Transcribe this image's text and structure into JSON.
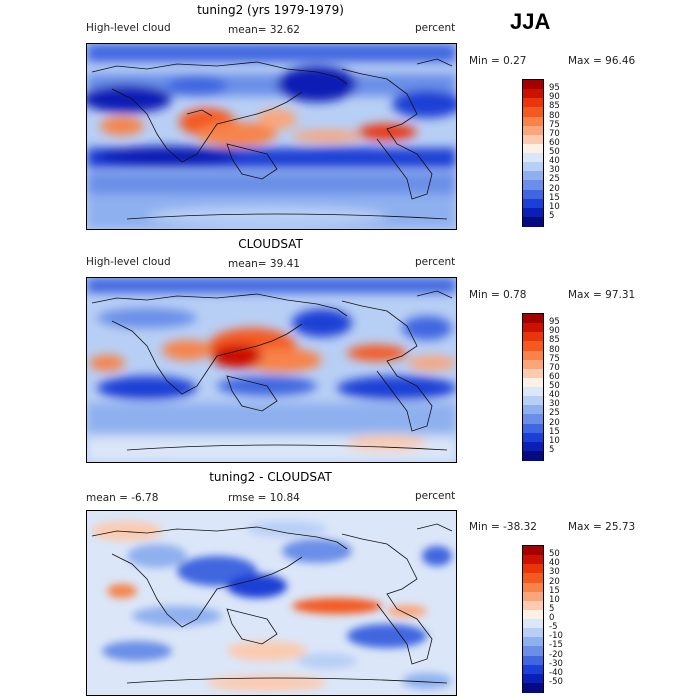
{
  "season": "JJA",
  "panels": [
    {
      "title": "tuning2 (yrs 1979-1979)",
      "variable": "High-level cloud",
      "stat_text": "mean=  32.62",
      "units": "percent",
      "min_text": "Min =    0.27",
      "max_text": "Max =   96.46",
      "colorbar_labels": [
        "95",
        "90",
        "85",
        "80",
        "75",
        "70",
        "60",
        "50",
        "40",
        "30",
        "25",
        "20",
        "15",
        "10",
        "5"
      ],
      "colorbar_colors": [
        "#a50000",
        "#cc1100",
        "#e8350a",
        "#f45a20",
        "#f7834a",
        "#f9a67a",
        "#fbcbb0",
        "#fdf0e4",
        "#dbe6f8",
        "#b8cff5",
        "#8fb0ef",
        "#6b8fe8",
        "#4066e0",
        "#1c3fd6",
        "#0a1fb5",
        "#050a80"
      ]
    },
    {
      "title": "CLOUDSAT",
      "variable": "High-level cloud",
      "stat_text": "mean=  39.41",
      "units": "percent",
      "min_text": "Min =    0.78",
      "max_text": "Max =   97.31",
      "colorbar_labels": [
        "95",
        "90",
        "85",
        "80",
        "75",
        "70",
        "60",
        "50",
        "40",
        "30",
        "25",
        "20",
        "15",
        "10",
        "5"
      ],
      "colorbar_colors": [
        "#a50000",
        "#cc1100",
        "#e8350a",
        "#f45a20",
        "#f7834a",
        "#f9a67a",
        "#fbcbb0",
        "#fdf0e4",
        "#dbe6f8",
        "#b8cff5",
        "#8fb0ef",
        "#6b8fe8",
        "#4066e0",
        "#1c3fd6",
        "#0a1fb5",
        "#050a80"
      ]
    },
    {
      "title": "tuning2 - CLOUDSAT",
      "stat_text": "mean =   -6.78",
      "rmse_text": "rmse =   10.84",
      "units": "percent",
      "min_text": "Min = -38.32",
      "max_text": "Max =   25.73",
      "colorbar_labels": [
        "50",
        "40",
        "30",
        "20",
        "15",
        "10",
        "5",
        "0",
        "-5",
        "-10",
        "-15",
        "-20",
        "-30",
        "-40",
        "-50"
      ],
      "colorbar_colors": [
        "#a50000",
        "#cc1100",
        "#e8350a",
        "#f45a20",
        "#f7834a",
        "#f9a67a",
        "#fbcbb0",
        "#fdf0e4",
        "#dbe6f8",
        "#b8cff5",
        "#8fb0ef",
        "#6b8fe8",
        "#4066e0",
        "#1c3fd6",
        "#0a1fb5",
        "#050a80"
      ]
    }
  ]
}
